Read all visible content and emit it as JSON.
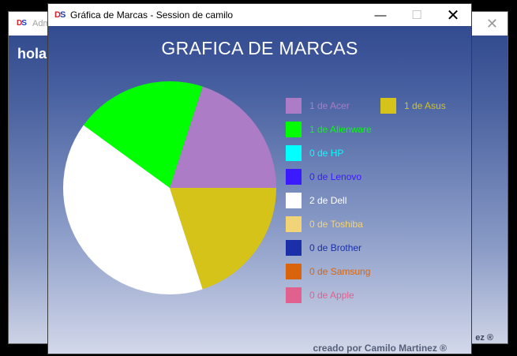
{
  "background_window": {
    "title": "Adm",
    "heading": "hola",
    "footer": "ez ®"
  },
  "window": {
    "title": "Gráfica de Marcas - Session de camilo",
    "logo_left": "D",
    "logo_right": "S",
    "minimize_glyph": "—",
    "maximize_glyph": "☐",
    "close_glyph": "✕",
    "credit": "creado por Camilo Martinez ®"
  },
  "chart_data": {
    "type": "pie",
    "title": "GRAFICA DE MARCAS",
    "legend_placement": "right",
    "slices": [
      {
        "label": "1 de Acer",
        "value": 1,
        "color": "#ad7cc6"
      },
      {
        "label": "1 de Asus",
        "value": 1,
        "color": "#d6c31a"
      },
      {
        "label": "1 de Alienware",
        "value": 1,
        "color": "#00ff00"
      },
      {
        "label": "0 de HP",
        "value": 0,
        "color": "#00ffff"
      },
      {
        "label": "0 de Lenovo",
        "value": 0,
        "color": "#3b1aff"
      },
      {
        "label": "2 de Dell",
        "value": 2,
        "color": "#ffffff"
      },
      {
        "label": "0 de Toshiba",
        "value": 0,
        "color": "#f2d478"
      },
      {
        "label": "0 de Brother",
        "value": 0,
        "color": "#1a2fa8"
      },
      {
        "label": "0 de Samsung",
        "value": 0,
        "color": "#d9640c"
      },
      {
        "label": "0 de Apple",
        "value": 0,
        "color": "#e0608e"
      }
    ]
  }
}
